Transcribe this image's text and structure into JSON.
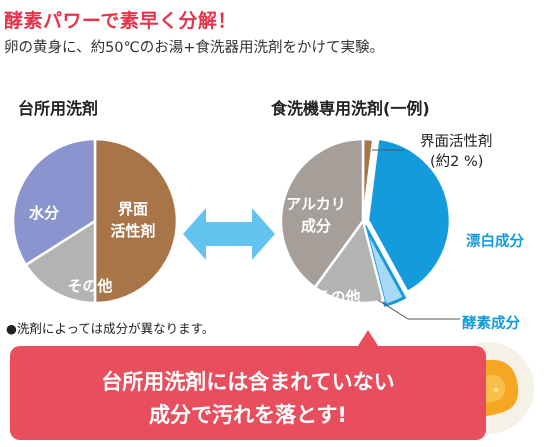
{
  "headline": "酵素パワーで素早く分解！",
  "subline": "卵の黄身に、約50℃のお湯+食洗器用洗剤をかけて実験。",
  "note": "●洗剤によっては成分が異なります。",
  "banner": {
    "line1": "台所用洗剤には含まれていない",
    "line2": "成分で汚れを落とす!"
  },
  "colors": {
    "water": "#8a95cf",
    "surfactant": "#a87549",
    "other": "#b3b3b3",
    "alkali": "#a69f99",
    "bleach": "#149bdc",
    "enzyme": "#a9daf5",
    "headline": "#e8334a",
    "banner": "#e94e5e",
    "arrow": "#63c3ef"
  },
  "chart_data": [
    {
      "type": "pie",
      "title": "台所用洗剤",
      "slices": [
        {
          "label": "界面活性剤",
          "value": 50,
          "color": "#a87549"
        },
        {
          "label": "その他",
          "value": 16,
          "color": "#b3b3b3"
        },
        {
          "label": "水分",
          "value": 34,
          "color": "#8a95cf"
        }
      ]
    },
    {
      "type": "pie",
      "title": "食洗機専用洗剤(一例)",
      "slices": [
        {
          "label": "界面活性剤 (約2 %)",
          "value": 2,
          "color": "#a87549"
        },
        {
          "label": "漂白成分",
          "value": 40,
          "color": "#149bdc"
        },
        {
          "label": "酵素成分",
          "value": 4,
          "color": "#a9daf5"
        },
        {
          "label": "その他",
          "value": 14,
          "color": "#b3b3b3"
        },
        {
          "label": "アルカリ成分",
          "value": 40,
          "color": "#a69f99"
        }
      ]
    }
  ]
}
